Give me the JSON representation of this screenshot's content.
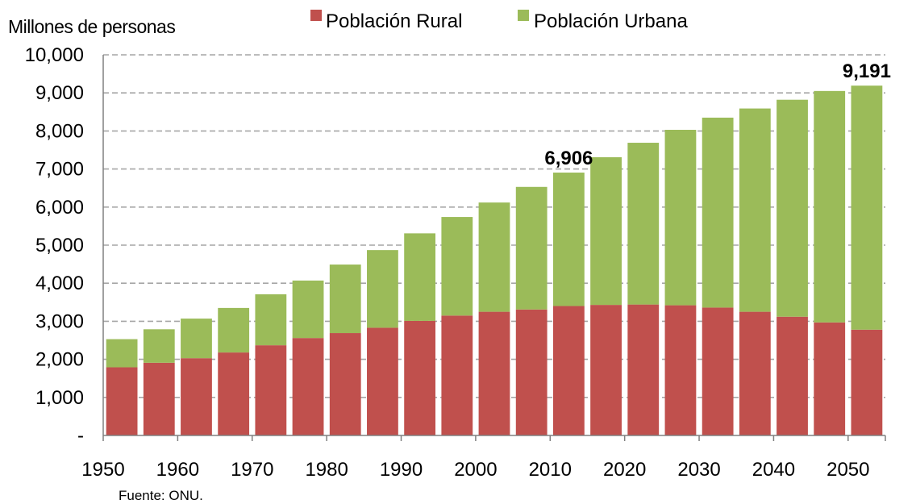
{
  "chart_data": {
    "type": "bar",
    "stacked": true,
    "ylabel": "Millones de personas",
    "ylim": [
      0,
      10000
    ],
    "yticks": [
      0,
      1000,
      2000,
      3000,
      4000,
      5000,
      6000,
      7000,
      8000,
      9000,
      10000
    ],
    "ytick_labels": [
      "-",
      "1,000",
      "2,000",
      "3,000",
      "4,000",
      "5,000",
      "6,000",
      "7,000",
      "8,000",
      "9,000",
      "10,000"
    ],
    "grid": "horizontal dashed",
    "legend_position": "top",
    "xtick_labels": [
      "1950",
      "1960",
      "1970",
      "1980",
      "1990",
      "2000",
      "2010",
      "2020",
      "2030",
      "2040",
      "2050"
    ],
    "categories": [
      "1950",
      "1955",
      "1960",
      "1965",
      "1970",
      "1975",
      "1980",
      "1985",
      "1990",
      "1995",
      "2000",
      "2005",
      "2010",
      "2015",
      "2020",
      "2025",
      "2030",
      "2035",
      "2040",
      "2045",
      "2050"
    ],
    "series": [
      {
        "name": "Población Rural",
        "color": "#C0504D",
        "values": [
          1790,
          1910,
          2030,
          2180,
          2370,
          2560,
          2690,
          2830,
          3010,
          3150,
          3250,
          3310,
          3400,
          3430,
          3440,
          3420,
          3360,
          3250,
          3120,
          2970,
          2780
        ]
      },
      {
        "name": "Población Urbana",
        "color": "#9BBB59",
        "values": [
          740,
          880,
          1040,
          1170,
          1340,
          1510,
          1800,
          2040,
          2300,
          2590,
          2870,
          3220,
          3506,
          3880,
          4250,
          4610,
          4990,
          5340,
          5700,
          6080,
          6411
        ]
      }
    ],
    "data_labels": [
      {
        "category": "2010",
        "text": "6,906"
      },
      {
        "category": "2050",
        "text": "9,191"
      }
    ],
    "source": "Fuente: ONU."
  }
}
